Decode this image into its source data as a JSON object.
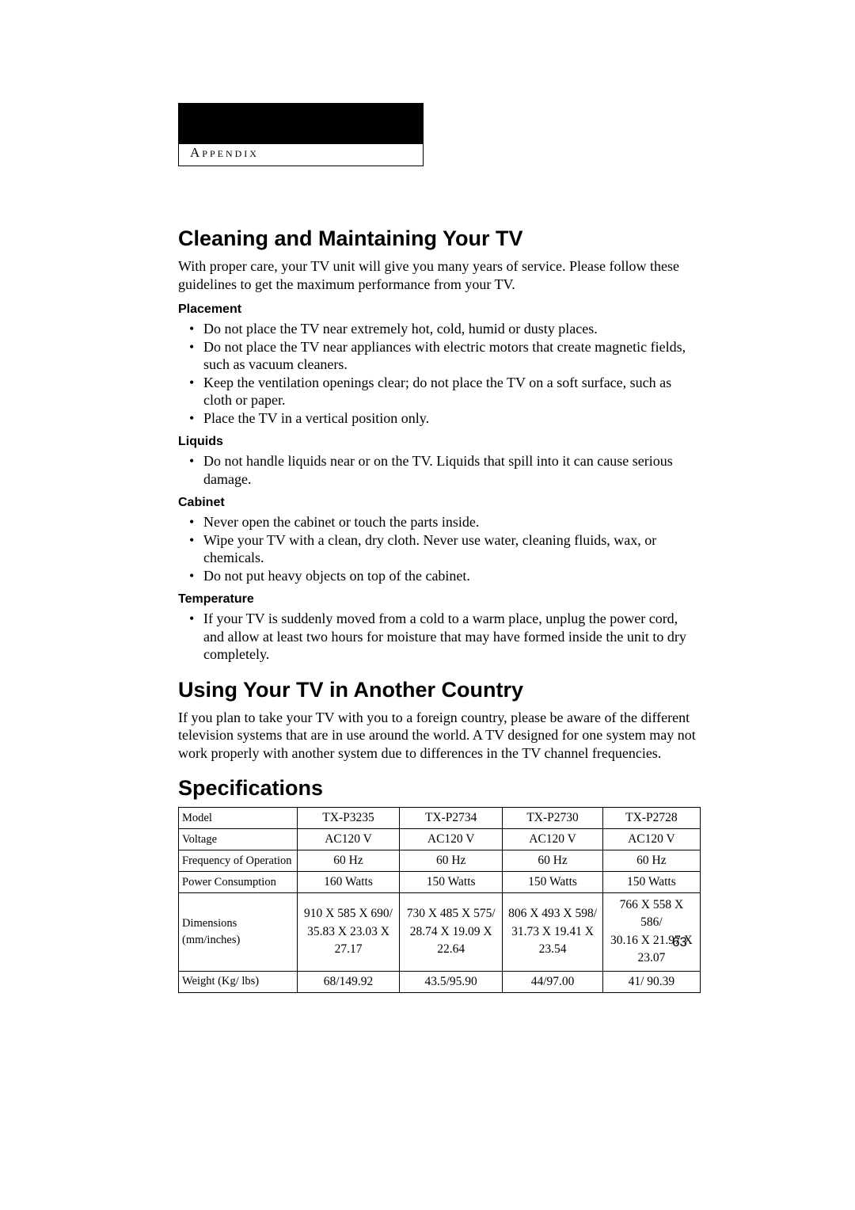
{
  "appendix_label": "Appendix",
  "page_number": "63",
  "sections": {
    "cleaning": {
      "title": "Cleaning and Maintaining Your TV",
      "intro": "With proper care, your TV unit will give you many years of service. Please follow these guidelines to get the maximum performance from your TV.",
      "groups": [
        {
          "heading": "Placement",
          "items": [
            "Do not place the TV near extremely hot, cold, humid or dusty places.",
            "Do not place the TV near appliances with electric motors that create magnetic fields, such as vacuum cleaners.",
            "Keep the ventilation openings clear; do not place the TV on a soft surface, such as cloth or paper.",
            "Place the TV in a vertical position only."
          ]
        },
        {
          "heading": "Liquids",
          "items": [
            "Do not handle liquids near or on the TV. Liquids that spill into it can cause serious damage."
          ]
        },
        {
          "heading": "Cabinet",
          "items": [
            "Never open the cabinet or touch the parts inside.",
            "Wipe your TV with a clean, dry cloth. Never use water, cleaning fluids, wax, or chemicals.",
            "Do not put heavy objects on top of the cabinet."
          ]
        },
        {
          "heading": "Temperature",
          "items": [
            "If your TV is suddenly moved from a cold to a warm place, unplug the power cord, and allow at least two hours for moisture that may have formed inside the unit to dry completely."
          ]
        }
      ]
    },
    "abroad": {
      "title": "Using Your TV in Another Country",
      "intro": "If you plan to take your TV with you to a foreign country, please be aware of the different television systems that are in use around the world. A TV designed for one system may not work properly with another system due to differences in the TV channel frequencies."
    },
    "specs": {
      "title": "Specifications",
      "row_labels": {
        "model": "Model",
        "voltage": "Voltage",
        "freq": "Frequency of Operation",
        "power": "Power Consumption",
        "dims_mm": "Dimensions",
        "dims_in": "(mm/inches)",
        "weight": "Weight (Kg/ lbs)"
      },
      "cols": [
        {
          "model": "TX-P3235",
          "voltage": "AC120 V",
          "freq": "60 Hz",
          "power": "160 Watts",
          "dims_mm": "910 X 585 X 690/",
          "dims_in": "35.83 X 23.03 X 27.17",
          "weight": "68/149.92"
        },
        {
          "model": "TX-P2734",
          "voltage": "AC120 V",
          "freq": "60 Hz",
          "power": "150 Watts",
          "dims_mm": "730 X 485 X 575/",
          "dims_in": "28.74 X 19.09 X 22.64",
          "weight": "43.5/95.90"
        },
        {
          "model": "TX-P2730",
          "voltage": "AC120 V",
          "freq": "60 Hz",
          "power": "150 Watts",
          "dims_mm": "806 X 493 X 598/",
          "dims_in": "31.73 X 19.41 X 23.54",
          "weight": "44/97.00"
        },
        {
          "model": "TX-P2728",
          "voltage": "AC120 V",
          "freq": "60 Hz",
          "power": "150 Watts",
          "dims_mm": "766 X 558 X 586/",
          "dims_in": "30.16 X 21.97 X 23.07",
          "weight": "41/ 90.39"
        }
      ]
    }
  }
}
